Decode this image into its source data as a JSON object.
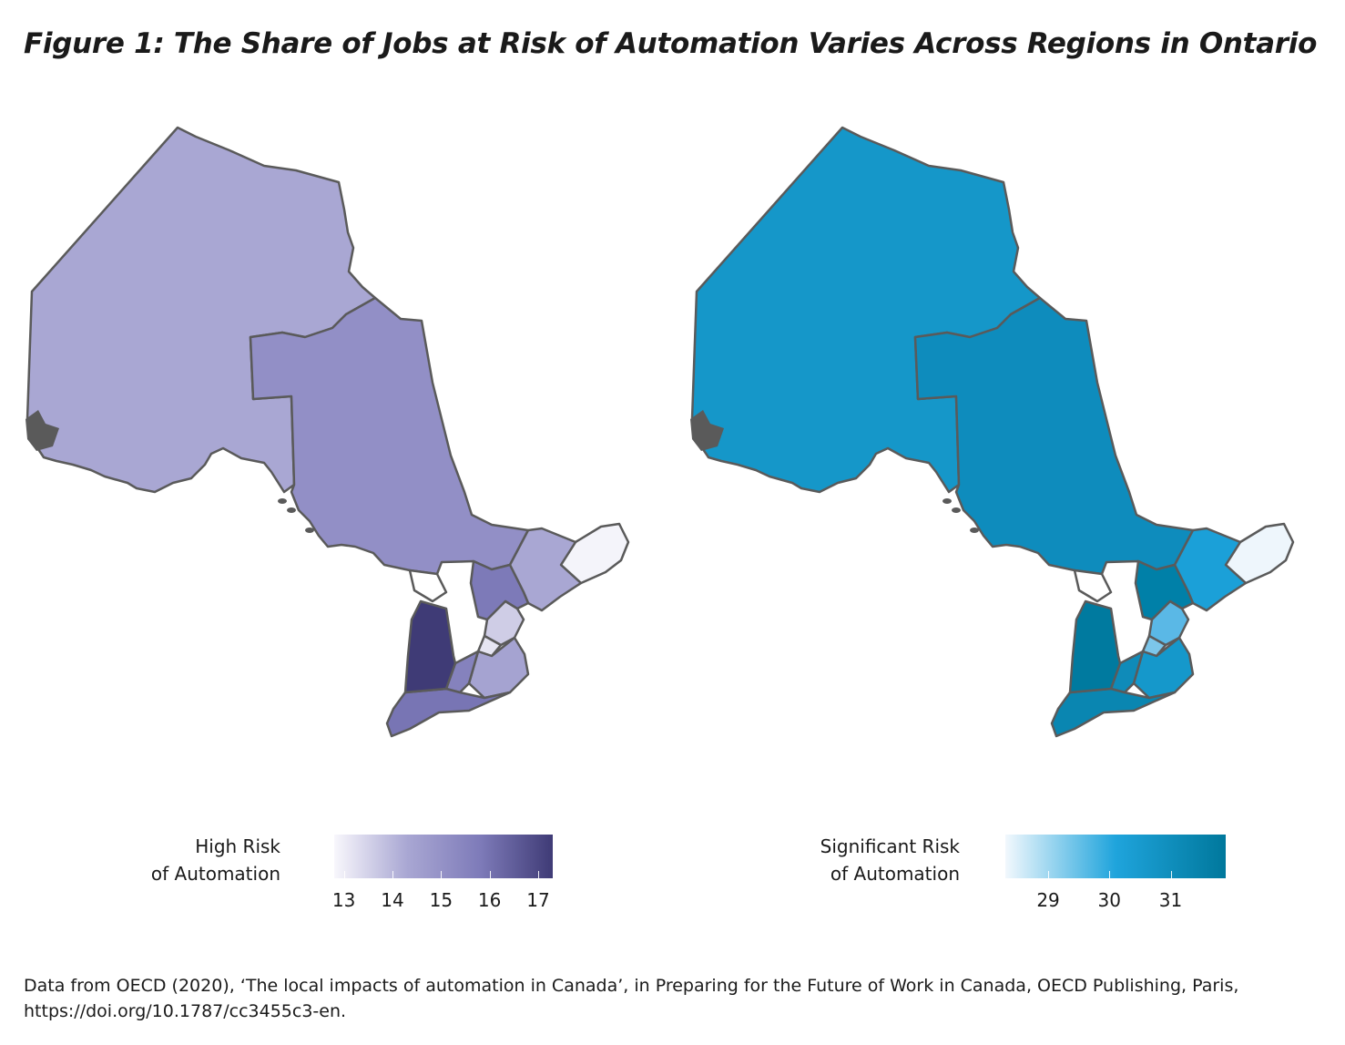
{
  "title": "Figure 1: The Share of Jobs at Risk of Automation Varies Across Regions in Ontario",
  "colors": {
    "border": "#5a5a5a",
    "high_risk_scale": [
      "#f8f7fc",
      "#a9a7d3",
      "#7e7bb9",
      "#3f3b76"
    ],
    "significant_risk_scale": [
      "#f2f8fd",
      "#1fa4dc",
      "#00789c"
    ]
  },
  "maps": [
    {
      "id": "high-risk",
      "legend_title_line1": "High Risk",
      "legend_title_line2": "of Automation",
      "legend_range": [
        12.8,
        17.3
      ],
      "legend_ticks": [
        "13",
        "14",
        "15",
        "16",
        "17"
      ],
      "tick_values": [
        13,
        14,
        15,
        16,
        17
      ],
      "region_colors": {
        "northwest": "#a9a7d3",
        "northeast": "#928fc6",
        "far_east": "#f4f4fa",
        "eastern": "#a9a7d3",
        "central_east": "#7d7ab8",
        "gta": "#cfcde6",
        "toronto": "#e6e5f2",
        "niagara": "#a5a3d1",
        "golden_horseshoe_west": "#8582bd",
        "southwest": "#7875b4",
        "lake_huron_shore": "#3f3b76",
        "manitoulin": "#ffffff"
      }
    },
    {
      "id": "significant-risk",
      "legend_title_line1": "Significant Risk",
      "legend_title_line2": "of Automation",
      "legend_range": [
        28.3,
        31.9
      ],
      "legend_ticks": [
        "29",
        "30",
        "31"
      ],
      "tick_values": [
        29,
        30,
        31
      ],
      "region_colors": {
        "northwest": "#1597c9",
        "northeast": "#0e8cbd",
        "far_east": "#eef6fc",
        "eastern": "#1ba0d8",
        "central_east": "#0080a8",
        "gta": "#5ab8e6",
        "toronto": "#7cc6ea",
        "niagara": "#1598cb",
        "golden_horseshoe_west": "#0f8bb9",
        "southwest": "#0a86b1",
        "lake_huron_shore": "#007a9f",
        "manitoulin": "#ffffff"
      }
    }
  ],
  "source": "Data from OECD (2020), ‘The local impacts of automation in Canada’, in Preparing for the Future of Work in Canada, OECD Publishing, Paris, https://doi.org/10.1787/cc3455c3-en."
}
